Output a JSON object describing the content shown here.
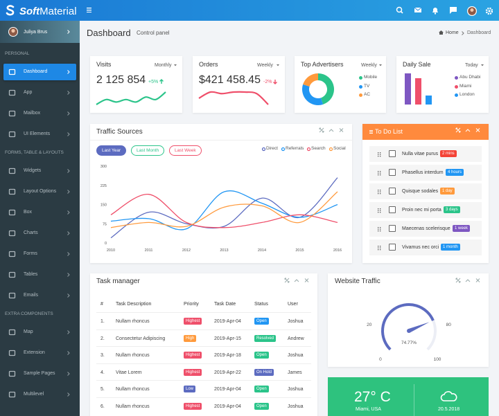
{
  "brand": {
    "prefix": "Soft",
    "name": "Material"
  },
  "user": {
    "name": "Juliya Brus"
  },
  "sidebar": [
    {
      "title": "PERSONAL",
      "items": [
        "Dashboard",
        "App",
        "Mailbox",
        "UI Elements"
      ]
    },
    {
      "title": "FORMS, TABLE & LAYOUTS",
      "items": [
        "Widgets",
        "Layout Options",
        "Box",
        "Charts",
        "Forms",
        "Tables",
        "Emails"
      ]
    },
    {
      "title": "EXTRA COMPONENTS",
      "items": [
        "Map",
        "Extension",
        "Sample Pages",
        "Multilevel"
      ]
    }
  ],
  "header": {
    "title": "Dashboard",
    "subtitle": "Control panel",
    "breadcrumb": [
      "Home",
      "Dashboard"
    ]
  },
  "stats": [
    {
      "title": "Visits",
      "period": "Monthly",
      "value": "2 125 854",
      "change": "+5%",
      "trend": "up",
      "color": "#2bc48a",
      "spark": {
        "type": "line",
        "values": [
          2,
          4,
          3,
          4,
          3,
          5,
          4,
          7
        ]
      }
    },
    {
      "title": "Orders",
      "period": "Weekly",
      "value": "$421 458.45",
      "change": "-2%",
      "trend": "down",
      "color": "#ef4f6a",
      "spark": {
        "type": "line",
        "values": [
          4,
          6,
          5.5,
          6,
          6,
          5.5,
          2
        ]
      }
    }
  ],
  "advertisers": {
    "title": "Top Advertisers",
    "period": "Weekly",
    "type": "pie",
    "donut": true,
    "categories": [
      "Mobile",
      "TV",
      "AC"
    ],
    "values": [
      45,
      35,
      20
    ],
    "colors": [
      "#2bc48a",
      "#2196f3",
      "#ff9a3c"
    ]
  },
  "daily_sale": {
    "title": "Daily Sale",
    "period": "Today",
    "type": "bar",
    "categories": [
      "Abu Dhabi",
      "Miami",
      "London"
    ],
    "values": [
      45,
      38,
      13
    ],
    "colors": [
      "#7e57c2",
      "#ef4f6a",
      "#2196f3"
    ]
  },
  "traffic_sources": {
    "title": "Traffic Sources",
    "type": "line",
    "filters": [
      "Last Year",
      "Last Month",
      "Last Week"
    ],
    "filter_colors": [
      "#5c6bc0",
      "#2bc48a",
      "#ef4f6a"
    ],
    "categories": [
      "2010",
      "2011",
      "2012",
      "2013",
      "2014",
      "2015",
      "2016"
    ],
    "ylim": [
      0,
      300
    ],
    "yticks": [
      0,
      75,
      150,
      225,
      300
    ],
    "grid": false,
    "series": [
      {
        "name": "Direct",
        "color": "#5c6bc0",
        "values": [
          20,
          120,
          75,
          65,
          175,
          100,
          255
        ]
      },
      {
        "name": "Referrals",
        "color": "#2196f3",
        "values": [
          85,
          95,
          55,
          200,
          155,
          100,
          150
        ]
      },
      {
        "name": "Search",
        "color": "#ef4f6a",
        "values": [
          110,
          190,
          80,
          60,
          80,
          110,
          80
        ]
      },
      {
        "name": "Social",
        "color": "#ff9a3c",
        "values": [
          60,
          80,
          65,
          140,
          145,
          80,
          200
        ]
      }
    ]
  },
  "todo": {
    "title": "To Do List",
    "items": [
      {
        "text": "Nulla vitae purus",
        "badge": "2 mins",
        "color": "#f44336"
      },
      {
        "text": "Phasellus interdum",
        "badge": "4 hours",
        "color": "#2196f3"
      },
      {
        "text": "Quisque sodales",
        "badge": "1 day",
        "color": "#ff9a3c"
      },
      {
        "text": "Proin nec mi porta",
        "badge": "3 days",
        "color": "#2bc48a"
      },
      {
        "text": "Maecenas scelerisque",
        "badge": "1 week",
        "color": "#7e57c2"
      },
      {
        "text": "Vivamus nec orci",
        "badge": "1 month",
        "color": "#2196f3"
      }
    ]
  },
  "tasks": {
    "title": "Task manager",
    "columns": [
      "#",
      "Task Description",
      "Priority",
      "Task Date",
      "Status",
      "User"
    ],
    "rows": [
      {
        "num": "1.",
        "task": "Nullam rhoncus",
        "priority": "Highest",
        "priority_color": "#ef4f6a",
        "date": "2019-Apr-04",
        "status": "Open",
        "status_color": "#2196f3",
        "user": "Joshua"
      },
      {
        "num": "2.",
        "task": "Consectetur Adipiscing",
        "priority": "High",
        "priority_color": "#ff9a3c",
        "date": "2019-Apr-15",
        "status": "Resolved",
        "status_color": "#2bc48a",
        "user": "Andrew"
      },
      {
        "num": "3.",
        "task": "Nullam rhoncus",
        "priority": "Highest",
        "priority_color": "#ef4f6a",
        "date": "2019-Apr-18",
        "status": "Open",
        "status_color": "#2bc48a",
        "user": "Joshua"
      },
      {
        "num": "4.",
        "task": "Vitae Lorem",
        "priority": "Highest",
        "priority_color": "#ef4f6a",
        "date": "2019-Apr-22",
        "status": "On Hold",
        "status_color": "#5c6bc0",
        "user": "James"
      },
      {
        "num": "5.",
        "task": "Nullam rhoncus",
        "priority": "Low",
        "priority_color": "#5c6bc0",
        "date": "2019-Apr-04",
        "status": "Open",
        "status_color": "#2bc48a",
        "user": "Joshua"
      },
      {
        "num": "6.",
        "task": "Nullam rhoncus",
        "priority": "Highest",
        "priority_color": "#ef4f6a",
        "date": "2019-Apr-04",
        "status": "Open",
        "status_color": "#2bc48a",
        "user": "Joshua"
      }
    ]
  },
  "website_traffic": {
    "title": "Website Traffic",
    "type": "gauge",
    "range": [
      0,
      100
    ],
    "ticks": [
      0,
      20,
      80,
      100
    ],
    "value": 74.77,
    "value_label": "74.77%",
    "color": "#5c6bc0"
  },
  "weather": {
    "temperature": "27° C",
    "location": "Miami, USA",
    "date": "20.5.2018"
  }
}
